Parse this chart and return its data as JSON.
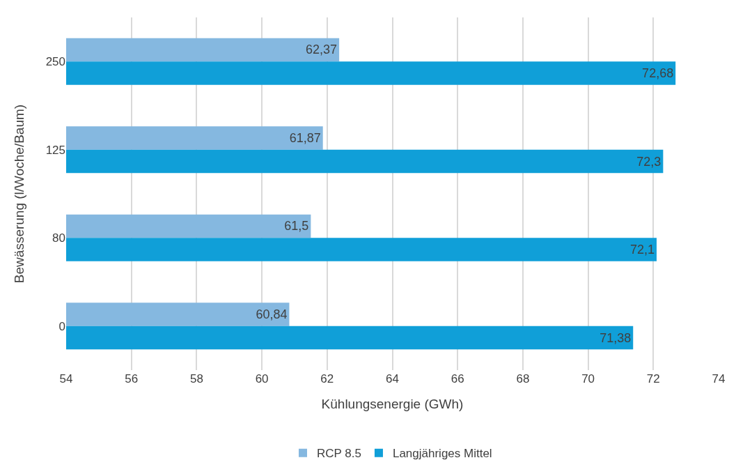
{
  "chart_data": {
    "type": "bar",
    "orientation": "horizontal",
    "xlabel": "Kühlungsenergie (GWh)",
    "ylabel": "Bewässerung (l/Woche/Baum)",
    "categories": [
      "250",
      "125",
      "80",
      "0"
    ],
    "series": [
      {
        "name": "RCP 8.5",
        "color": "#85b8e0",
        "values": [
          62.37,
          61.87,
          61.5,
          60.84
        ],
        "value_labels": [
          "62,37",
          "61,87",
          "61,5",
          "60,84"
        ]
      },
      {
        "name": "Langjähriges Mittel",
        "color": "#109fd8",
        "values": [
          72.68,
          72.3,
          72.1,
          71.38
        ],
        "value_labels": [
          "72,68",
          "72,3",
          "72,1",
          "71,38"
        ]
      }
    ],
    "xlim": [
      54,
      74
    ],
    "xticks": [
      54,
      56,
      58,
      60,
      62,
      64,
      66,
      68,
      70,
      72,
      74
    ],
    "grid": "x",
    "legend": "bottom"
  }
}
